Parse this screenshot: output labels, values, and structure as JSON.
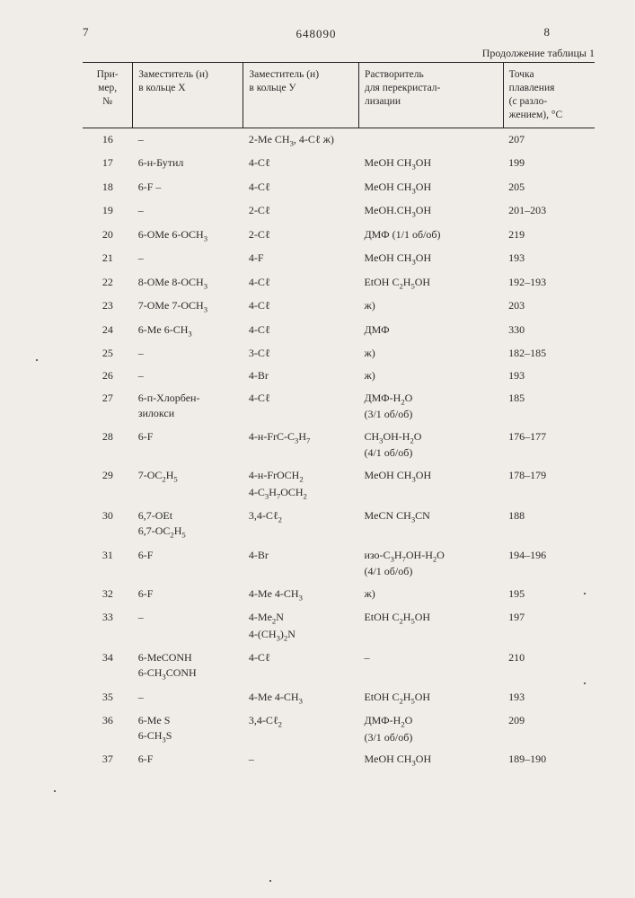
{
  "page_left_num": "7",
  "page_right_num": "8",
  "doc_number": "648090",
  "continuation": "Продолжение таблицы 1",
  "headers": {
    "c0": "При-\nмер,\n№",
    "c1": "Заместитель (и)\nв кольце Х",
    "c2": "Заместитель (и)\nв кольце У",
    "c3": "Растворитель\nдля перекристал-\nлизации",
    "c4": "Точка\nплавления\n(с разло-\nжением), °С"
  },
  "rows": [
    {
      "n": "16",
      "x": "–",
      "y": "2-Me CH₃, 4-Cℓ ж)",
      "s": "",
      "t": "207"
    },
    {
      "n": "17",
      "x": "6-н-Бутил",
      "y": "4-Cℓ",
      "s": "MeOH CH₃OH",
      "t": "199"
    },
    {
      "n": "18",
      "x": "6-F –",
      "y": "4-Cℓ",
      "s": "MeOH CH₃OH",
      "t": "205"
    },
    {
      "n": "19",
      "x": "–",
      "y": "2-Cℓ",
      "s": "MeOH.CH₃OH",
      "t": "201–203"
    },
    {
      "n": "20",
      "x": "6-OMe 6-OCH₃",
      "y": "2-Cℓ",
      "s": "ДМФ (1/1 об/об)",
      "t": "219"
    },
    {
      "n": "21",
      "x": "–",
      "y": "4-F",
      "s": "MeOH CH₃OH",
      "t": "193"
    },
    {
      "n": "22",
      "x": "8-OMe 8-OCH₃",
      "y": "4-Cℓ",
      "s": "EtOH C₂H₅OH",
      "t": "192–193"
    },
    {
      "n": "23",
      "x": "7-OMe 7-OCH₃",
      "y": "4-Cℓ",
      "s": "ж)",
      "t": "203"
    },
    {
      "n": "24",
      "x": "6-Me 6-CH₃",
      "y": "4-Cℓ",
      "s": "ДМФ",
      "t": "330"
    },
    {
      "n": "25",
      "x": "–",
      "y": "3-Cℓ",
      "s": "ж)",
      "t": "182–185"
    },
    {
      "n": "26",
      "x": "–",
      "y": "4-Br",
      "s": "ж)",
      "t": "193"
    },
    {
      "n": "27",
      "x": "6-п-Хлорбен-\nзилокси",
      "y": "4-Cℓ",
      "s": "ДМФ-H₂O\n(3/1 об/об)",
      "t": "185"
    },
    {
      "n": "28",
      "x": "6-F",
      "y": "4-н-FrС-C₃H₇",
      "s": "CH₃OH-H₂O\n(4/1 об/об)",
      "t": "176–177"
    },
    {
      "n": "29",
      "x": "7-OC₂H₅",
      "y": "4-н-FrOCH₂\n4-C₃H₇OCH₂",
      "s": "MeOH CH₃OH",
      "t": "178–179"
    },
    {
      "n": "30",
      "x": "6,7-OEt\n6,7-OC₂H₅",
      "y": "3,4-Cℓ₂",
      "s": "MeCN  CH₃CN",
      "t": "188"
    },
    {
      "n": "31",
      "x": "6-F",
      "y": "4-Br",
      "s": "изо-C₃H₇OH-H₂O\n(4/1 об/об)",
      "t": "194–196"
    },
    {
      "n": "32",
      "x": "6-F",
      "y": "4-Me 4-CH₃",
      "s": "ж)",
      "t": "195"
    },
    {
      "n": "33",
      "x": "–",
      "y": "4-Me₂N\n4-(CH₃)₂N",
      "s": "EtOH C₂H₅OH",
      "t": "197"
    },
    {
      "n": "34",
      "x": "6-MeCONH\n6-CH₃CONH",
      "y": "4-Cℓ",
      "s": "–",
      "t": "210"
    },
    {
      "n": "35",
      "x": "–",
      "y": "4-Me 4-CH₃",
      "s": "EtOH C₂H₅OH",
      "t": "193"
    },
    {
      "n": "36",
      "x": "6-Me S\n6-CH₃S",
      "y": "3,4-Cℓ₂",
      "s": "ДМФ-H₂O\n(3/1 об/об)",
      "t": "209"
    },
    {
      "n": "37",
      "x": "6-F",
      "y": "–",
      "s": "MeOH CH₃OH",
      "t": "189–190"
    }
  ]
}
